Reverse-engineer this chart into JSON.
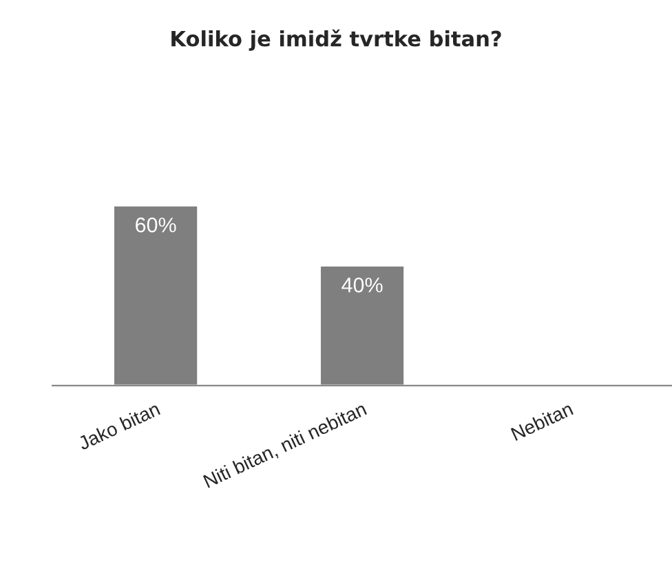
{
  "chart_data": {
    "type": "bar",
    "title": "Koliko je imidž tvrtke bitan?",
    "categories": [
      "Jako bitan",
      "Niti bitan, niti nebitan",
      "Nebitan"
    ],
    "values": [
      60,
      40,
      null
    ],
    "value_labels": [
      "60%",
      "40%",
      null
    ],
    "color": "#7f7f7f",
    "grid": false,
    "legend": false
  }
}
